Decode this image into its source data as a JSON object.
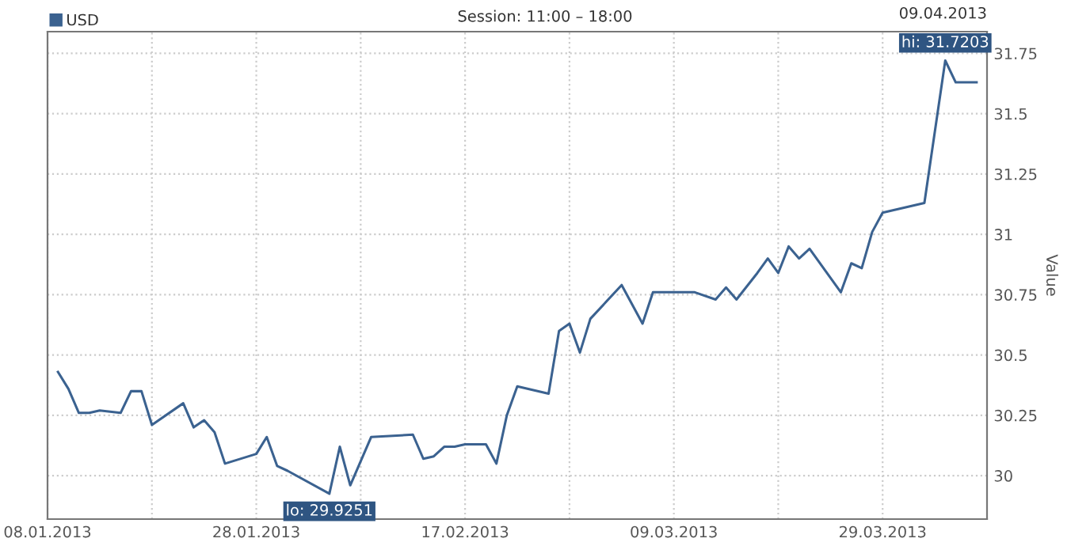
{
  "chart_data": {
    "type": "line",
    "title": "Session: 11:00 – 18:00",
    "ylabel": "Value",
    "x": [
      "2013-01-09",
      "2013-01-10",
      "2013-01-11",
      "2013-01-12",
      "2013-01-13",
      "2013-01-15",
      "2013-01-16",
      "2013-01-17",
      "2013-01-18",
      "2013-01-21",
      "2013-01-22",
      "2013-01-23",
      "2013-01-24",
      "2013-01-25",
      "2013-01-28",
      "2013-01-29",
      "2013-01-30",
      "2013-01-31",
      "2013-02-04",
      "2013-02-05",
      "2013-02-06",
      "2013-02-07",
      "2013-02-08",
      "2013-02-12",
      "2013-02-13",
      "2013-02-14",
      "2013-02-15",
      "2013-02-16",
      "2013-02-17",
      "2013-02-19",
      "2013-02-20",
      "2013-02-21",
      "2013-02-22",
      "2013-02-25",
      "2013-02-26",
      "2013-02-27",
      "2013-02-28",
      "2013-03-01",
      "2013-03-04",
      "2013-03-06",
      "2013-03-07",
      "2013-03-11",
      "2013-03-13",
      "2013-03-14",
      "2013-03-15",
      "2013-03-17",
      "2013-03-18",
      "2013-03-19",
      "2013-03-20",
      "2013-03-21",
      "2013-03-22",
      "2013-03-25",
      "2013-03-26",
      "2013-03-27",
      "2013-03-28",
      "2013-03-29",
      "2013-04-02",
      "2013-04-04",
      "2013-04-05",
      "2013-04-07"
    ],
    "series": [
      {
        "name": "USD",
        "color": "#3b6290",
        "values": [
          30.43,
          30.36,
          30.26,
          30.26,
          30.27,
          30.26,
          30.35,
          30.35,
          30.21,
          30.3,
          30.2,
          30.23,
          30.18,
          30.05,
          30.09,
          30.16,
          30.04,
          30.02,
          29.9251,
          30.12,
          29.96,
          30.06,
          30.16,
          30.17,
          30.07,
          30.08,
          30.12,
          30.12,
          30.13,
          30.13,
          30.05,
          30.25,
          30.37,
          30.34,
          30.6,
          30.63,
          30.51,
          30.65,
          30.79,
          30.63,
          30.76,
          30.76,
          30.73,
          30.78,
          30.73,
          30.84,
          30.9,
          30.84,
          30.95,
          30.9,
          30.94,
          30.76,
          30.88,
          30.86,
          31.01,
          31.09,
          31.13,
          31.7203,
          31.63,
          31.63
        ]
      }
    ],
    "xlim": [
      "2013-01-08",
      "2013-04-08"
    ],
    "xticks": [
      {
        "value": "2013-01-08",
        "label": "08.01.2013"
      },
      {
        "value": "2013-01-18",
        "label": null
      },
      {
        "value": "2013-01-28",
        "label": "28.01.2013"
      },
      {
        "value": "2013-02-07",
        "label": null
      },
      {
        "value": "2013-02-17",
        "label": "17.02.2013"
      },
      {
        "value": "2013-02-27",
        "label": null
      },
      {
        "value": "2013-03-09",
        "label": "09.03.2013"
      },
      {
        "value": "2013-03-19",
        "label": null
      },
      {
        "value": "2013-03-29",
        "label": "29.03.2013"
      }
    ],
    "ylim": [
      29.82,
      31.84
    ],
    "yticks": [
      30,
      30.25,
      30.5,
      30.75,
      31,
      31.25,
      31.5,
      31.75
    ],
    "annotations": [
      {
        "text": "lo: 29.9251",
        "x": "2013-02-04",
        "y": 29.9251
      },
      {
        "text": "hi: 31.7203",
        "x": "2013-04-04",
        "y": 31.7203
      },
      "09.04.2013"
    ],
    "grid": true,
    "legend": "top left",
    "marker": "none",
    "line_style": "solid"
  }
}
